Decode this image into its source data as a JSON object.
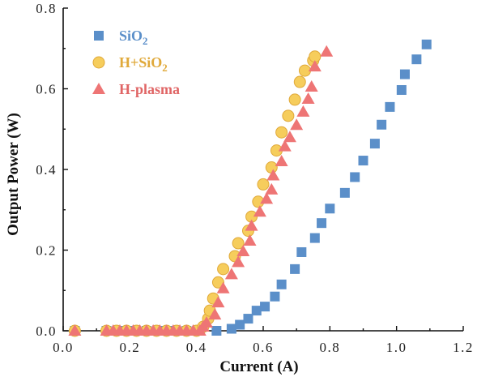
{
  "colors": {
    "sio2": "#5b8fc9",
    "h_sio2": "#f6cd5c",
    "h_sio2_stroke": "#e0a93a",
    "h_plasma": "#ee7575",
    "h_plasma_text": "#e06565"
  },
  "chart_data": {
    "type": "scatter",
    "xlabel": "Current (A)",
    "ylabel": "Output Power (W)",
    "xlim": [
      0.0,
      1.2
    ],
    "ylim": [
      0.0,
      0.8
    ],
    "x_ticks": [
      "0.0",
      "0.2",
      "0.4",
      "0.6",
      "0.8",
      "1.0",
      "1.2"
    ],
    "y_ticks": [
      "0.0",
      "0.2",
      "0.4",
      "0.6",
      "0.8"
    ],
    "grid": false,
    "legend_position": "top-left",
    "series": [
      {
        "name": "SiO2",
        "label_main": "SiO",
        "label_sub": "2",
        "marker": "square",
        "color_key": "sio2",
        "points": [
          [
            0.035,
            0.0
          ],
          [
            0.13,
            0.0
          ],
          [
            0.17,
            0.0
          ],
          [
            0.21,
            0.0
          ],
          [
            0.25,
            0.0
          ],
          [
            0.29,
            0.0
          ],
          [
            0.33,
            0.0
          ],
          [
            0.37,
            0.0
          ],
          [
            0.41,
            0.0
          ],
          [
            0.46,
            0.0
          ],
          [
            0.505,
            0.005
          ],
          [
            0.53,
            0.015
          ],
          [
            0.555,
            0.03
          ],
          [
            0.58,
            0.05
          ],
          [
            0.605,
            0.06
          ],
          [
            0.635,
            0.085
          ],
          [
            0.655,
            0.115
          ],
          [
            0.695,
            0.153
          ],
          [
            0.715,
            0.195
          ],
          [
            0.755,
            0.23
          ],
          [
            0.775,
            0.267
          ],
          [
            0.8,
            0.303
          ],
          [
            0.845,
            0.342
          ],
          [
            0.875,
            0.381
          ],
          [
            0.9,
            0.422
          ],
          [
            0.935,
            0.464
          ],
          [
            0.955,
            0.511
          ],
          [
            0.98,
            0.555
          ],
          [
            1.015,
            0.597
          ],
          [
            1.025,
            0.636
          ],
          [
            1.06,
            0.673
          ],
          [
            1.09,
            0.71
          ]
        ]
      },
      {
        "name": "H+SiO2",
        "label_main": "H+SiO",
        "label_sub": "2",
        "marker": "circle",
        "color_key": "h_sio2",
        "points": [
          [
            0.035,
            0.0
          ],
          [
            0.13,
            0.0
          ],
          [
            0.16,
            0.0
          ],
          [
            0.19,
            0.0
          ],
          [
            0.22,
            0.0
          ],
          [
            0.25,
            0.0
          ],
          [
            0.28,
            0.0
          ],
          [
            0.31,
            0.0
          ],
          [
            0.34,
            0.0
          ],
          [
            0.37,
            0.0
          ],
          [
            0.4,
            0.0
          ],
          [
            0.42,
            0.01
          ],
          [
            0.435,
            0.03
          ],
          [
            0.44,
            0.05
          ],
          [
            0.45,
            0.08
          ],
          [
            0.465,
            0.12
          ],
          [
            0.48,
            0.153
          ],
          [
            0.515,
            0.185
          ],
          [
            0.525,
            0.217
          ],
          [
            0.555,
            0.248
          ],
          [
            0.565,
            0.283
          ],
          [
            0.585,
            0.32
          ],
          [
            0.6,
            0.363
          ],
          [
            0.625,
            0.405
          ],
          [
            0.64,
            0.447
          ],
          [
            0.655,
            0.492
          ],
          [
            0.675,
            0.533
          ],
          [
            0.695,
            0.573
          ],
          [
            0.71,
            0.617
          ],
          [
            0.725,
            0.645
          ],
          [
            0.75,
            0.67
          ],
          [
            0.755,
            0.68
          ]
        ]
      },
      {
        "name": "H-plasma",
        "label_main": "H-plasma",
        "label_sub": "",
        "marker": "triangle",
        "color_key": "h_plasma",
        "points": [
          [
            0.035,
            0.0
          ],
          [
            0.13,
            0.0
          ],
          [
            0.15,
            0.0
          ],
          [
            0.17,
            0.0
          ],
          [
            0.19,
            0.0
          ],
          [
            0.21,
            0.0
          ],
          [
            0.23,
            0.0
          ],
          [
            0.25,
            0.0
          ],
          [
            0.27,
            0.0
          ],
          [
            0.29,
            0.0
          ],
          [
            0.31,
            0.0
          ],
          [
            0.33,
            0.0
          ],
          [
            0.35,
            0.0
          ],
          [
            0.37,
            0.0
          ],
          [
            0.39,
            0.0
          ],
          [
            0.41,
            0.0
          ],
          [
            0.42,
            0.01
          ],
          [
            0.43,
            0.02
          ],
          [
            0.455,
            0.04
          ],
          [
            0.465,
            0.07
          ],
          [
            0.48,
            0.105
          ],
          [
            0.505,
            0.14
          ],
          [
            0.525,
            0.17
          ],
          [
            0.54,
            0.197
          ],
          [
            0.56,
            0.223
          ],
          [
            0.565,
            0.26
          ],
          [
            0.59,
            0.295
          ],
          [
            0.61,
            0.327
          ],
          [
            0.625,
            0.35
          ],
          [
            0.63,
            0.385
          ],
          [
            0.655,
            0.42
          ],
          [
            0.665,
            0.457
          ],
          [
            0.68,
            0.48
          ],
          [
            0.7,
            0.51
          ],
          [
            0.72,
            0.543
          ],
          [
            0.735,
            0.575
          ],
          [
            0.745,
            0.605
          ],
          [
            0.755,
            0.655
          ],
          [
            0.79,
            0.692
          ]
        ]
      }
    ]
  }
}
